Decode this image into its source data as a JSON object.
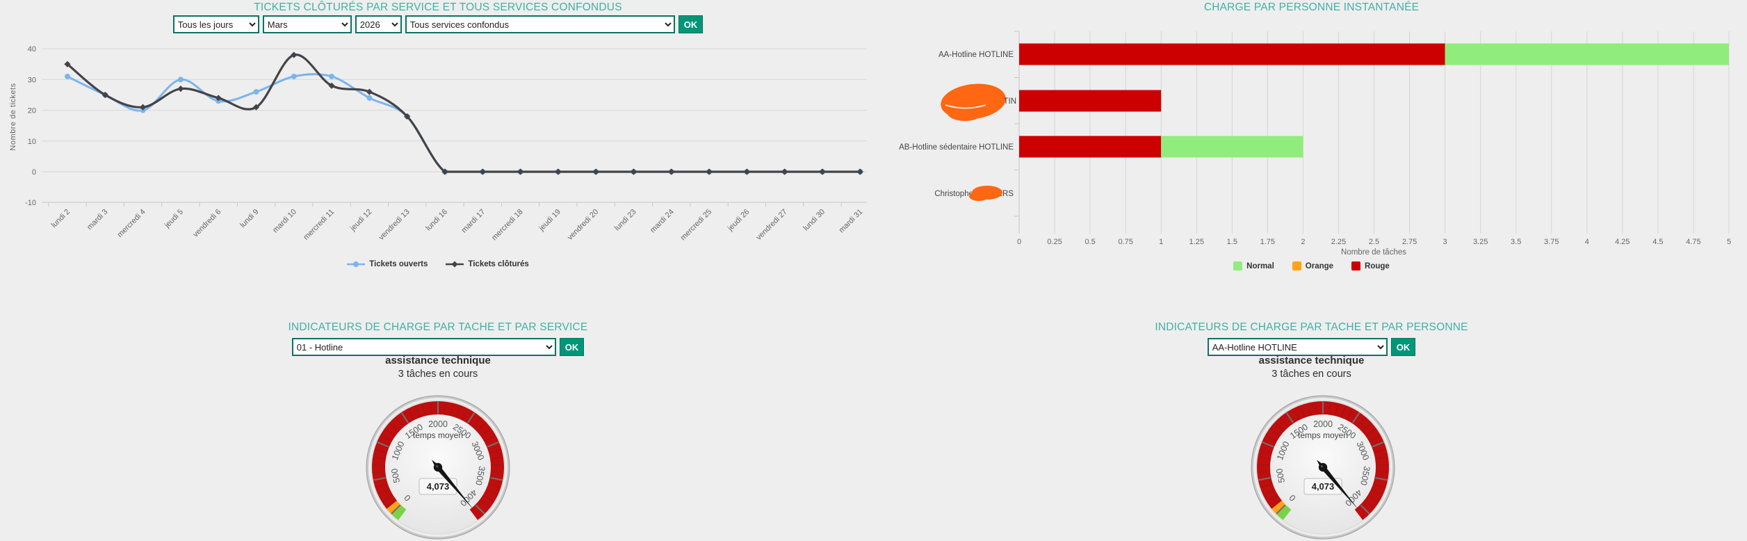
{
  "app": {
    "background": "#eeeeee",
    "accent_teal": "#41b0a5",
    "ok_button_color": "#019678",
    "select_border_color": "#0c7265",
    "redaction_color": "#ff6712"
  },
  "tickets_panel": {
    "title": "TICKETS CLÔTURÉS PAR SERVICE ET TOUS SERVICES CONFONDUS",
    "filters": {
      "period_value": "Tous les jours",
      "month_value": "Mars",
      "year_value": "2026",
      "service_value": "Tous services confondus",
      "ok_label": "OK"
    }
  },
  "charge_panel": {
    "title": "CHARGE PAR PERSONNE INSTANTANÉE"
  },
  "service_panel": {
    "title": "INDICATEURS DE CHARGE PAR TACHE ET PAR SERVICE",
    "select_value": "01 - Hotline",
    "ok_label": "OK",
    "task_name": "assistance technique",
    "task_count": "3 tâches en cours"
  },
  "person_panel": {
    "title": "INDICATEURS DE CHARGE PAR TACHE ET PAR PERSONNE",
    "select_value": "AA-Hotline HOTLINE",
    "ok_label": "OK",
    "task_name": "assistance technique",
    "task_count": "3 tâches en cours"
  },
  "chart_data": [
    {
      "id": "tickets_line",
      "type": "line",
      "title": "TICKETS CLÔTURÉS PAR SERVICE ET TOUS SERVICES CONFONDUS",
      "ylabel": "Nombre de tickets",
      "ylim": [
        -10,
        40
      ],
      "yticks": [
        40,
        30,
        20,
        10,
        0,
        -10
      ],
      "grid": true,
      "legend_position": "bottom",
      "categories": [
        "lundi 2",
        "mardi 3",
        "mercredi 4",
        "jeudi 5",
        "vendredi 6",
        "lundi 9",
        "mardi 10",
        "mercredi 11",
        "jeudi 12",
        "vendredi 13",
        "lundi 16",
        "mardi 17",
        "mercredi 18",
        "jeudi 19",
        "vendredi 20",
        "lundi 23",
        "mardi 24",
        "mercredi 25",
        "jeudi 26",
        "vendredi 27",
        "lundi 30",
        "mardi 31"
      ],
      "series": [
        {
          "name": "Tickets ouverts",
          "color": "#7cb5ec",
          "marker": "circle",
          "values": [
            31,
            25,
            20,
            30,
            23,
            26,
            31,
            31,
            24,
            18,
            0,
            0,
            0,
            0,
            0,
            0,
            0,
            0,
            0,
            0,
            0,
            0
          ]
        },
        {
          "name": "Tickets clôturés",
          "color": "#434348",
          "marker": "diamond",
          "values": [
            35,
            25,
            21,
            27,
            24,
            21,
            38,
            28,
            26,
            18,
            0,
            0,
            0,
            0,
            0,
            0,
            0,
            0,
            0,
            0,
            0,
            0
          ]
        }
      ]
    },
    {
      "id": "charge_bar",
      "type": "bar",
      "title": "CHARGE PAR PERSONNE INSTANTANÉE",
      "xlabel": "Nombre de tâches",
      "xlim": [
        0,
        5
      ],
      "xticks": [
        0,
        0.25,
        0.5,
        0.75,
        1,
        1.25,
        1.5,
        1.75,
        2,
        2.25,
        2.5,
        2.75,
        3,
        3.25,
        3.5,
        3.75,
        4,
        4.25,
        4.5,
        4.75,
        5
      ],
      "grid": true,
      "legend_position": "bottom",
      "categories": [
        {
          "prefix": "AA-Hotline HOTLINE",
          "suffix": "",
          "redacted": false
        },
        {
          "prefix": "",
          "suffix": "TIN",
          "redacted": true
        },
        {
          "prefix": "AB-Hotline sédentaire HOTLINE",
          "suffix": "",
          "redacted": false
        },
        {
          "prefix": "Christophe",
          "suffix": "ERS",
          "redacted": true
        }
      ],
      "bars": [
        {
          "segments": [
            {
              "color": "#cc0000",
              "from": 0,
              "to": 3
            },
            {
              "color": "#90ed7d",
              "from": 3,
              "to": 5
            }
          ]
        },
        {
          "segments": [
            {
              "color": "#cc0000",
              "from": 0,
              "to": 1
            }
          ]
        },
        {
          "segments": [
            {
              "color": "#cc0000",
              "from": 0,
              "to": 1
            },
            {
              "color": "#90ed7d",
              "from": 1,
              "to": 2
            }
          ]
        },
        {
          "segments": []
        }
      ],
      "legend": [
        {
          "label": "Normal",
          "color": "#90ed7d"
        },
        {
          "label": "Orange",
          "color": "#ffa317"
        },
        {
          "label": "Rouge",
          "color": "#cc0000"
        }
      ]
    },
    {
      "id": "workload_gauge",
      "type": "gauge",
      "label": "temps moyen",
      "value": 4073,
      "display_value": "4,073",
      "min": 0,
      "max": 4000,
      "tick_interval": 500,
      "minor_tick": 100,
      "zones": [
        {
          "color": "#77d348",
          "from_angle": -143,
          "to_angle": -136
        },
        {
          "color": "#ffa317",
          "from_angle": -136,
          "to_angle": -129
        },
        {
          "color": "#c00d0d",
          "from_angle": -129,
          "to_angle": 143
        }
      ]
    }
  ]
}
